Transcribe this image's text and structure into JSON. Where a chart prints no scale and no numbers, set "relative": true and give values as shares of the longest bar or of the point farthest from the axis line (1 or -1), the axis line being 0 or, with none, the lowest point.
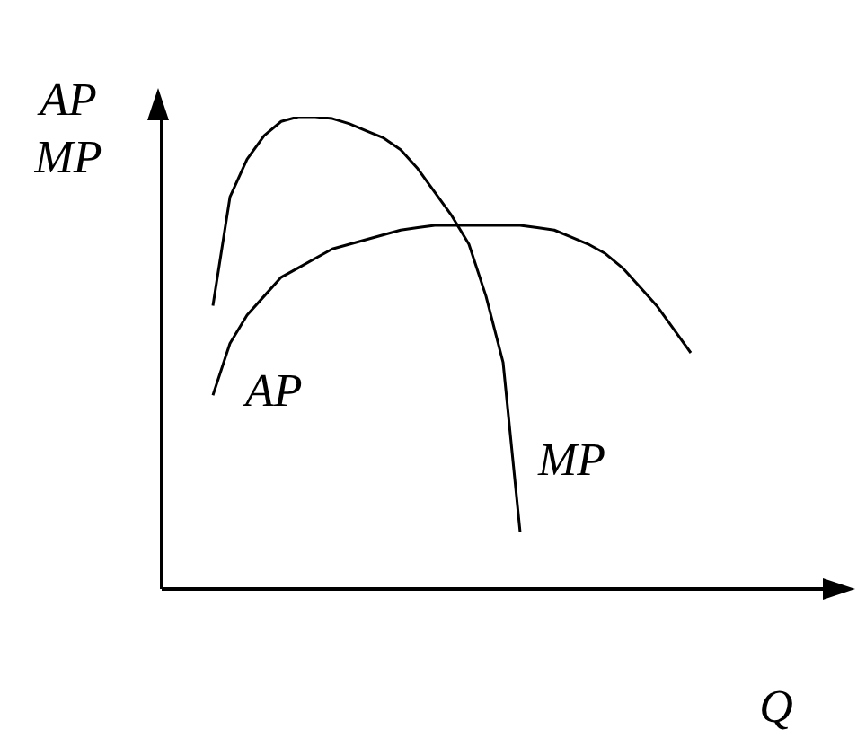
{
  "chart_data": {
    "type": "line",
    "relative": true,
    "xlabel": "Q",
    "ylabel": "AP MP",
    "grid": false,
    "legend": false,
    "marker": "none",
    "line_style": "solid",
    "categories": [
      null,
      null,
      null,
      null,
      null,
      null,
      null,
      null,
      null,
      null,
      null,
      null,
      null,
      null,
      null,
      null,
      null,
      null,
      null,
      null,
      null,
      null,
      null,
      null,
      null,
      null,
      null,
      null,
      null,
      null,
      null,
      null,
      null,
      null,
      null,
      null,
      null,
      null,
      null,
      null,
      null
    ],
    "series": [
      {
        "name": "AP",
        "color": "#000000",
        "values": [
          null,
          null,
          null,
          0.41,
          0.52,
          0.58,
          0.62,
          0.66,
          0.68,
          0.7,
          0.72,
          0.73,
          0.74,
          0.75,
          0.76,
          0.765,
          0.77,
          0.77,
          0.77,
          0.77,
          0.77,
          0.77,
          0.765,
          0.76,
          0.745,
          0.73,
          0.71,
          0.68,
          0.64,
          0.6,
          0.55,
          0.5,
          null,
          null,
          null,
          null,
          null,
          null,
          null,
          null,
          null
        ]
      },
      {
        "name": "MP",
        "color": "#000000",
        "values": [
          null,
          null,
          null,
          0.6,
          0.83,
          0.91,
          0.96,
          0.99,
          1,
          1,
          0.996,
          0.985,
          0.97,
          0.955,
          0.93,
          0.89,
          0.84,
          0.79,
          0.73,
          0.62,
          0.48,
          0.12,
          null,
          null,
          null,
          null,
          null,
          null,
          null,
          null,
          null,
          null,
          null,
          null,
          null,
          null,
          null,
          null,
          null,
          null,
          null
        ]
      }
    ]
  }
}
